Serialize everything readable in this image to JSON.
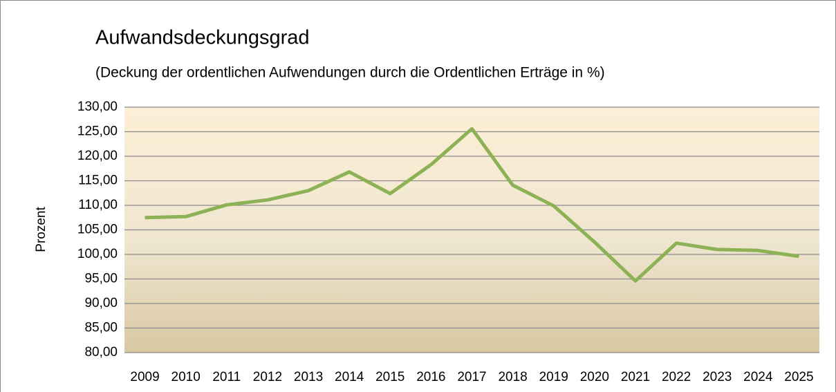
{
  "chart_data": {
    "type": "line",
    "title": "Aufwandsdeckungsgrad",
    "subtitle": "(Deckung der ordentlichen Aufwendungen durch die Ordentlichen Erträge in %)",
    "ylabel": "Prozent",
    "categories": [
      "2009",
      "2010",
      "2011",
      "2012",
      "2013",
      "2014",
      "2015",
      "2016",
      "2017",
      "2018",
      "2019",
      "2020",
      "2021",
      "2022",
      "2023",
      "2024",
      "2025"
    ],
    "series": [
      {
        "name": "Aufwandsdeckungsgrad",
        "color": "#8db255",
        "values": [
          107.5,
          107.7,
          110.1,
          111.1,
          113.0,
          116.8,
          112.4,
          118.3,
          125.6,
          114.1,
          109.9,
          102.5,
          94.6,
          102.3,
          101.0,
          100.8,
          99.6
        ]
      }
    ],
    "ylim": [
      80,
      130
    ],
    "yticks": [
      {
        "value": 80,
        "label": "80,00"
      },
      {
        "value": 85,
        "label": "85,00"
      },
      {
        "value": 90,
        "label": "90,00"
      },
      {
        "value": 95,
        "label": "95,00"
      },
      {
        "value": 100,
        "label": "100,00"
      },
      {
        "value": 105,
        "label": "105,00"
      },
      {
        "value": 110,
        "label": "110,00"
      },
      {
        "value": 115,
        "label": "115,00"
      },
      {
        "value": 120,
        "label": "120,00"
      },
      {
        "value": 125,
        "label": "125,00"
      },
      {
        "value": 130,
        "label": "130,00"
      }
    ],
    "grid": true
  }
}
